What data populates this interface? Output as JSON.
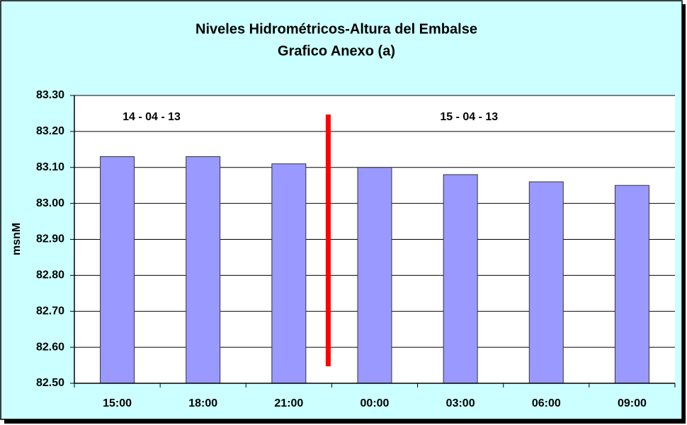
{
  "chart_data": {
    "type": "bar",
    "title": "Niveles Hidrométricos-Altura del Embalse",
    "subtitle": "Grafico Anexo (a)",
    "y_label": "msnM",
    "annotations": [
      "14 - 04 - 13",
      "15 - 04 - 13"
    ],
    "categories": [
      "15:00",
      "18:00",
      "21:00",
      "00:00",
      "03:00",
      "06:00",
      "09:00"
    ],
    "values": [
      83.13,
      83.13,
      83.11,
      83.1,
      83.08,
      83.06,
      83.05
    ],
    "color": "#9999ff",
    "ylim": [
      82.5,
      83.3
    ],
    "yticks": [
      {
        "value": 82.5,
        "label": "82.50"
      },
      {
        "value": 82.6,
        "label": "82.60"
      },
      {
        "value": 82.7,
        "label": "82.70"
      },
      {
        "value": 82.8,
        "label": "82.80"
      },
      {
        "value": 82.9,
        "label": "82.90"
      },
      {
        "value": 83.0,
        "label": "83.00"
      },
      {
        "value": 83.1,
        "label": "83.10"
      },
      {
        "value": 83.2,
        "label": "83.20"
      },
      {
        "value": 83.3,
        "label": "83.30"
      }
    ],
    "grid": true
  }
}
